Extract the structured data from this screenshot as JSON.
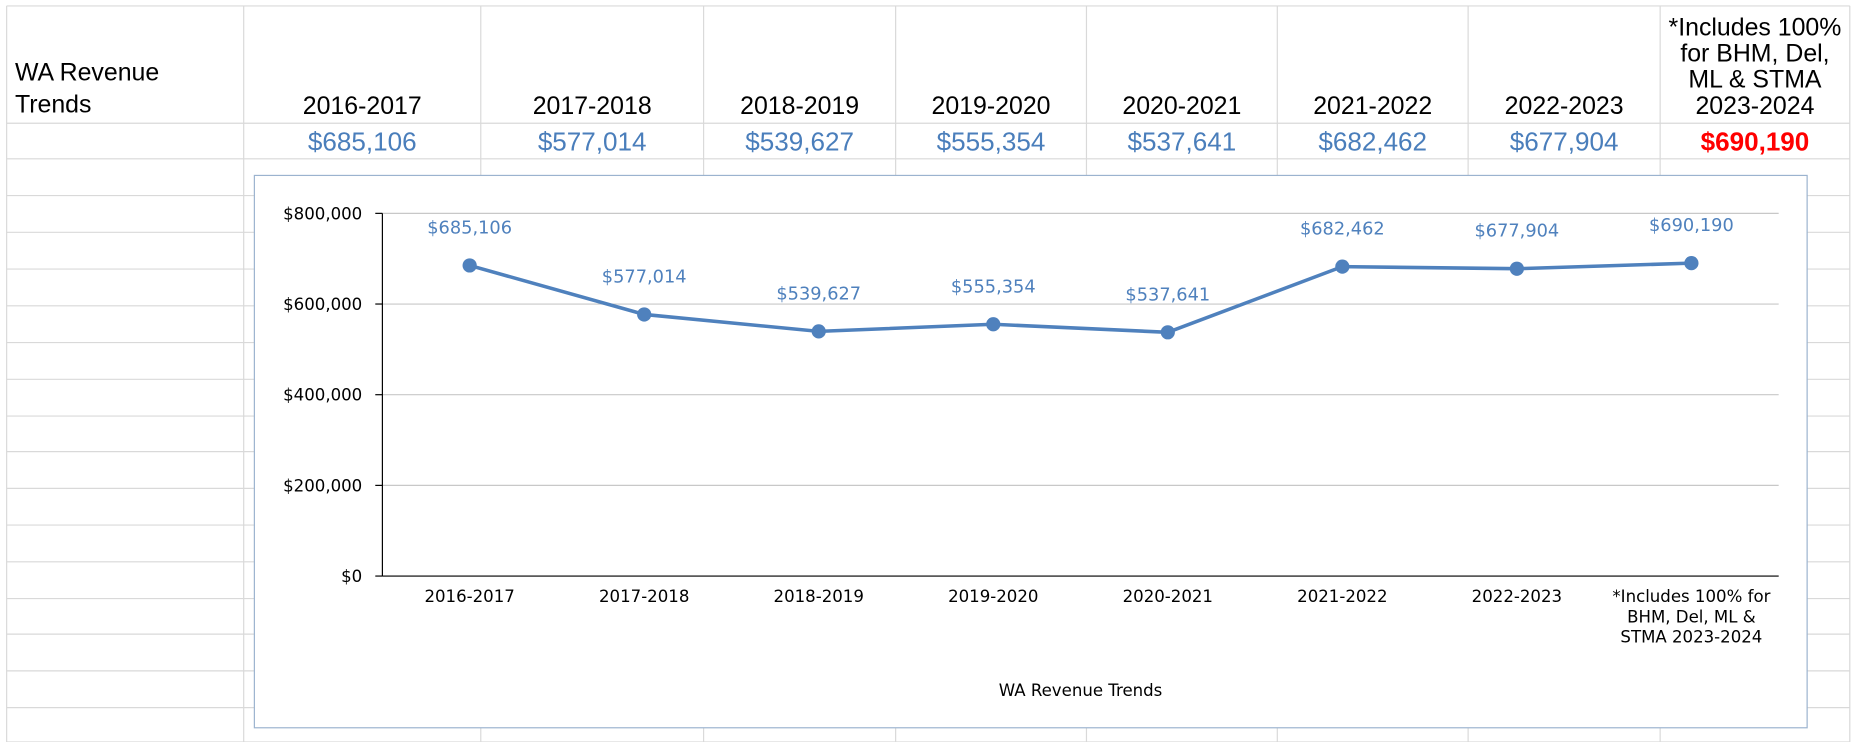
{
  "sheet": {
    "title": "WA Revenue Trends",
    "headers": [
      "2016-2017",
      "2017-2018",
      "2018-2019",
      "2019-2020",
      "2020-2021",
      "2021-2022",
      "2022-2023",
      "*Includes 100% for BHM, Del, ML & STMA 2023-2024"
    ],
    "values": [
      "$685,106",
      "$577,014",
      "$539,627",
      "$555,354",
      "$537,641",
      "$682,462",
      "$677,904",
      "$690,190"
    ]
  },
  "chart_data": {
    "type": "line",
    "xlabel": "WA Revenue Trends",
    "categories": [
      "2016-2017",
      "2017-2018",
      "2018-2019",
      "2019-2020",
      "2020-2021",
      "2021-2022",
      "2022-2023",
      "*Includes 100% for BHM, Del, ML & STMA 2023-2024"
    ],
    "values": [
      685106,
      577014,
      539627,
      555354,
      537641,
      682462,
      677904,
      690190
    ],
    "value_labels": [
      "$685,106",
      "$577,014",
      "$539,627",
      "$555,354",
      "$537,641",
      "$682,462",
      "$677,904",
      "$690,190"
    ],
    "color": "#4f81bd",
    "ylim": [
      0,
      800000
    ],
    "yticks": [
      {
        "value": 0,
        "label": "$0"
      },
      {
        "value": 200000,
        "label": "$200,000"
      },
      {
        "value": 400000,
        "label": "$400,000"
      },
      {
        "value": 600000,
        "label": "$600,000"
      },
      {
        "value": 800000,
        "label": "$800,000"
      }
    ],
    "grid": true
  }
}
